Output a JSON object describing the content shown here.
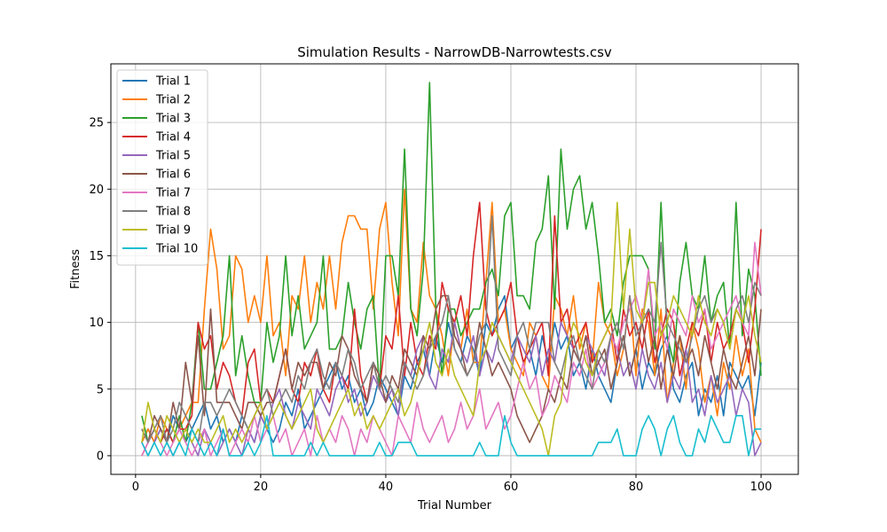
{
  "chart_data": {
    "type": "line",
    "title": "Simulation Results - NarrowDB-Narrowtests.csv",
    "xlabel": "Trial Number",
    "ylabel": "Fitness",
    "xlim": [
      -3.95,
      105.95
    ],
    "ylim": [
      -1.4,
      29.4
    ],
    "xticks": [
      0,
      20,
      40,
      60,
      80,
      100
    ],
    "yticks": [
      0,
      5,
      10,
      15,
      20,
      25
    ],
    "grid": true,
    "legend_position": "top-left",
    "x_start": 1,
    "x_end": 100,
    "series": [
      {
        "name": "Trial 1",
        "color": "#1f77b4",
        "values": [
          1,
          2,
          1,
          2,
          1,
          3,
          2,
          1,
          2,
          3,
          4,
          2,
          3,
          1,
          2,
          1,
          3,
          2,
          1,
          3,
          2,
          1,
          2,
          4,
          3,
          5,
          2,
          3,
          4,
          5,
          6,
          7,
          5,
          6,
          4,
          5,
          3,
          4,
          6,
          5,
          4,
          3,
          6,
          5,
          7,
          8,
          6,
          9,
          7,
          10,
          8,
          7,
          9,
          8,
          6,
          10,
          9,
          11,
          12,
          8,
          9,
          7,
          8,
          6,
          9,
          7,
          10,
          8,
          9,
          6,
          7,
          5,
          8,
          6,
          5,
          4,
          7,
          9,
          6,
          8,
          5,
          7,
          6,
          8,
          9,
          5,
          4,
          6,
          7,
          3,
          5,
          4,
          6,
          3,
          7,
          6,
          5,
          6,
          3,
          7
        ]
      },
      {
        "name": "Trial 2",
        "color": "#ff7f0e",
        "values": [
          1,
          2,
          1,
          3,
          2,
          1,
          2,
          3,
          4,
          4,
          11,
          17,
          14,
          8,
          9,
          15,
          14,
          10,
          12,
          10,
          15,
          9,
          10,
          6,
          12,
          11,
          15,
          10,
          13,
          11,
          15,
          11,
          16,
          18,
          18,
          17,
          17,
          11,
          17,
          19,
          13,
          9,
          20,
          11,
          10,
          16,
          12,
          11,
          9,
          6,
          10,
          8,
          11,
          7,
          7,
          13,
          19,
          10,
          11,
          8,
          7,
          6,
          10,
          9,
          6,
          5,
          12,
          11,
          9,
          12,
          8,
          10,
          7,
          13,
          10,
          9,
          6,
          8,
          12,
          6,
          11,
          10,
          6,
          11,
          4,
          7,
          9,
          5,
          10,
          8,
          4,
          6,
          3,
          7,
          5,
          9,
          6,
          8,
          2,
          1
        ]
      },
      {
        "name": "Trial 3",
        "color": "#2ca02c",
        "values": [
          3,
          1,
          2,
          1,
          2,
          1,
          3,
          1,
          4,
          10,
          5,
          5,
          7,
          9,
          15,
          6,
          9,
          6,
          4,
          4,
          10,
          7,
          9,
          15,
          9,
          12,
          8,
          9,
          10,
          15,
          8,
          8,
          9,
          13,
          10,
          8,
          11,
          12,
          5,
          15,
          15,
          12,
          23,
          11,
          9,
          14,
          28,
          11,
          6,
          11,
          11,
          9,
          10,
          11,
          11,
          13,
          14,
          12,
          18,
          19,
          12,
          12,
          11,
          16,
          17,
          21,
          11,
          23,
          17,
          20,
          21,
          17,
          19,
          15,
          10,
          11,
          9,
          13,
          15,
          15,
          15,
          14,
          8,
          19,
          9,
          7,
          13,
          16,
          12,
          11,
          15,
          10,
          12,
          13,
          8,
          19,
          9,
          14,
          12,
          6
        ]
      },
      {
        "name": "Trial 4",
        "color": "#d62728",
        "values": [
          0,
          1,
          2,
          1,
          2,
          1,
          2,
          2,
          3,
          10,
          8,
          9,
          5,
          7,
          6,
          4,
          3,
          7,
          8,
          4,
          5,
          4,
          6,
          8,
          5,
          4,
          7,
          6,
          8,
          5,
          4,
          7,
          6,
          5,
          11,
          6,
          4,
          7,
          5,
          9,
          8,
          12,
          6,
          10,
          7,
          6,
          9,
          8,
          13,
          11,
          10,
          12,
          9,
          15,
          19,
          11,
          9,
          10,
          11,
          13,
          9,
          7,
          8,
          9,
          10,
          6,
          18,
          10,
          11,
          8,
          9,
          10,
          7,
          8,
          9,
          10,
          7,
          11,
          9,
          10,
          8,
          11,
          7,
          9,
          11,
          10,
          6,
          8,
          10,
          9,
          11,
          7,
          10,
          8,
          9,
          11,
          10,
          7,
          11,
          17
        ]
      },
      {
        "name": "Trial 5",
        "color": "#9467bd",
        "values": [
          1,
          0,
          1,
          2,
          1,
          0,
          1,
          2,
          1,
          0,
          2,
          1,
          0,
          1,
          2,
          1,
          0,
          2,
          1,
          3,
          2,
          4,
          5,
          3,
          2,
          4,
          3,
          2,
          5,
          4,
          3,
          5,
          6,
          4,
          5,
          3,
          4,
          6,
          5,
          4,
          5,
          3,
          7,
          6,
          8,
          9,
          6,
          5,
          8,
          7,
          10,
          8,
          7,
          9,
          6,
          8,
          7,
          9,
          8,
          7,
          9,
          8,
          7,
          9,
          6,
          8,
          7,
          10,
          9,
          8,
          7,
          9,
          8,
          7,
          6,
          9,
          8,
          6,
          7,
          5,
          8,
          6,
          5,
          7,
          4,
          6,
          5,
          8,
          4,
          5,
          3,
          6,
          4,
          5,
          6,
          3,
          5,
          4,
          0,
          1
        ]
      },
      {
        "name": "Trial 6",
        "color": "#8c564b",
        "values": [
          2,
          1,
          3,
          2,
          1,
          4,
          2,
          7,
          4,
          9,
          3,
          11,
          4,
          4,
          4,
          3,
          2,
          4,
          4,
          3,
          4,
          4,
          6,
          8,
          5,
          7,
          6,
          7,
          7,
          5,
          7,
          6,
          9,
          8,
          6,
          5,
          4,
          7,
          6,
          4,
          6,
          5,
          8,
          7,
          6,
          9,
          8,
          11,
          12,
          12,
          9,
          8,
          6,
          7,
          10,
          8,
          6,
          7,
          6,
          5,
          3,
          2,
          1,
          2,
          3,
          5,
          4,
          6,
          5,
          8,
          7,
          9,
          6,
          7,
          8,
          5,
          7,
          9,
          6,
          8,
          10,
          7,
          9,
          5,
          8,
          6,
          9,
          7,
          8,
          6,
          9,
          7,
          5,
          8,
          6,
          5,
          7,
          9,
          6,
          11
        ]
      },
      {
        "name": "Trial 7",
        "color": "#e377c2",
        "values": [
          0,
          1,
          2,
          1,
          0,
          1,
          2,
          1,
          0,
          1,
          2,
          0,
          1,
          2,
          0,
          1,
          2,
          1,
          3,
          1,
          2,
          3,
          1,
          2,
          0,
          1,
          2,
          0,
          3,
          1,
          2,
          1,
          3,
          2,
          0,
          2,
          1,
          3,
          2,
          1,
          0,
          3,
          2,
          1,
          4,
          2,
          1,
          2,
          3,
          1,
          2,
          4,
          2,
          3,
          5,
          2,
          3,
          4,
          2,
          3,
          5,
          7,
          5,
          6,
          3,
          4,
          6,
          5,
          4,
          7,
          6,
          8,
          5,
          6,
          7,
          9,
          8,
          10,
          11,
          12,
          10,
          14,
          9,
          10,
          8,
          11,
          10,
          9,
          12,
          10,
          11,
          8,
          9,
          10,
          11,
          12,
          10,
          9,
          16,
          12
        ]
      },
      {
        "name": "Trial 8",
        "color": "#7f7f7f",
        "values": [
          2,
          1,
          2,
          3,
          1,
          2,
          4,
          3,
          2,
          1,
          4,
          4,
          3,
          4,
          5,
          4,
          3,
          2,
          3,
          4,
          5,
          3,
          4,
          5,
          4,
          6,
          5,
          7,
          8,
          6,
          5,
          7,
          6,
          8,
          7,
          5,
          6,
          7,
          5,
          6,
          5,
          4,
          7,
          6,
          5,
          6,
          8,
          9,
          10,
          12,
          8,
          7,
          6,
          7,
          9,
          10,
          18,
          8,
          7,
          6,
          9,
          10,
          8,
          10,
          10,
          10,
          7,
          6,
          8,
          9,
          7,
          6,
          5,
          8,
          7,
          9,
          10,
          8,
          12,
          9,
          10,
          11,
          10,
          16,
          10,
          9,
          8,
          7,
          9,
          11,
          12,
          10,
          11,
          10,
          8,
          11,
          12,
          10,
          13,
          12
        ]
      },
      {
        "name": "Trial 9",
        "color": "#bcbd22",
        "values": [
          1,
          4,
          2,
          1,
          3,
          2,
          1,
          2,
          1,
          2,
          1,
          1,
          2,
          3,
          1,
          2,
          1,
          2,
          3,
          4,
          2,
          3,
          4,
          3,
          2,
          3,
          4,
          5,
          2,
          1,
          2,
          3,
          4,
          5,
          3,
          4,
          2,
          3,
          2,
          3,
          4,
          5,
          3,
          4,
          6,
          8,
          10,
          7,
          6,
          8,
          6,
          5,
          4,
          3,
          7,
          8,
          10,
          9,
          8,
          7,
          6,
          5,
          4,
          3,
          2,
          0,
          3,
          4,
          8,
          10,
          9,
          7,
          6,
          8,
          9,
          10,
          19,
          11,
          17,
          11,
          10,
          13,
          13,
          9,
          10,
          12,
          11,
          10,
          9,
          12,
          10,
          9,
          11,
          10,
          8,
          11,
          10,
          12,
          9,
          7
        ]
      },
      {
        "name": "Trial 10",
        "color": "#17becf",
        "values": [
          1,
          0,
          1,
          0,
          1,
          0,
          1,
          0,
          2,
          1,
          0,
          1,
          0,
          2,
          0,
          0,
          0,
          1,
          0,
          1,
          3,
          0,
          0,
          0,
          0,
          0,
          0,
          1,
          0,
          1,
          0,
          0,
          0,
          0,
          0,
          0,
          0,
          0,
          1,
          0,
          0,
          1,
          1,
          1,
          0,
          0,
          0,
          0,
          0,
          0,
          0,
          0,
          0,
          0,
          1,
          0,
          0,
          0,
          3,
          1,
          0,
          0,
          0,
          0,
          0,
          0,
          0,
          0,
          0,
          0,
          0,
          0,
          0,
          1,
          1,
          1,
          2,
          0,
          0,
          0,
          2,
          3,
          2,
          0,
          2,
          3,
          1,
          0,
          0,
          2,
          1,
          3,
          2,
          1,
          1,
          3,
          3,
          0,
          2,
          2
        ]
      }
    ]
  }
}
